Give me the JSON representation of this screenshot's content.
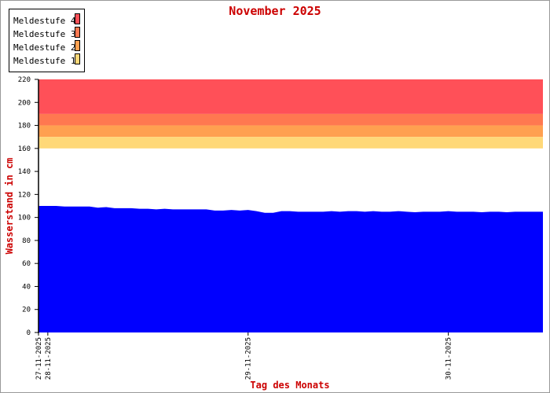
{
  "chart_data": {
    "type": "area",
    "title": "November 2025",
    "xlabel": "Tag des Monats",
    "ylabel": "Wasserstand in cm",
    "ylim": [
      0,
      220
    ],
    "yticks": [
      0,
      20,
      40,
      60,
      80,
      100,
      120,
      140,
      160,
      180,
      200,
      220
    ],
    "xticks": [
      {
        "label": "27-11-2025",
        "at": "27-11-2025 22:53"
      },
      {
        "label": "28-11-2025",
        "at": "28-11-2025 00:00"
      },
      {
        "label": "29-11-2025",
        "at": "29-11-2025 00:00"
      },
      {
        "label": "30-11-2025",
        "at": "30-11-2025 00:00"
      }
    ],
    "xlim": [
      "27-11-2025 22:53",
      "30-11-2025 11:20"
    ],
    "grid": false,
    "legend_position": "top-left",
    "colors": {
      "title": "#cc0000",
      "series": "#0000ff",
      "axis": "#000000"
    },
    "thresholds": [
      {
        "name": "Meldestufe 4",
        "from": 190,
        "to": 220,
        "color": "#ff5058"
      },
      {
        "name": "Meldestufe 3",
        "from": 180,
        "to": 190,
        "color": "#ff7850"
      },
      {
        "name": "Meldestufe 2",
        "from": 170,
        "to": 180,
        "color": "#ffa050"
      },
      {
        "name": "Meldestufe 1",
        "from": 160,
        "to": 170,
        "color": "#ffd878"
      }
    ],
    "series": [
      {
        "x_start": "27-11-2025 23:00",
        "x_step_hours": 1,
        "values": [
          110,
          110,
          110,
          109.5,
          109.5,
          109.5,
          109.5,
          108.5,
          109,
          108,
          108,
          108,
          107.5,
          107.5,
          107,
          107.5,
          107,
          107,
          107,
          107,
          107,
          106,
          106,
          106.5,
          106,
          106.5,
          105.5,
          104,
          104,
          105.5,
          105.5,
          105,
          105,
          105,
          105,
          105.5,
          105,
          105.5,
          105.5,
          105,
          105.5,
          105,
          105,
          105.5,
          105,
          104.5,
          105,
          105,
          105,
          105.5,
          105,
          105,
          105,
          104.5,
          105,
          105,
          104.5,
          105,
          105,
          105
        ]
      }
    ]
  }
}
